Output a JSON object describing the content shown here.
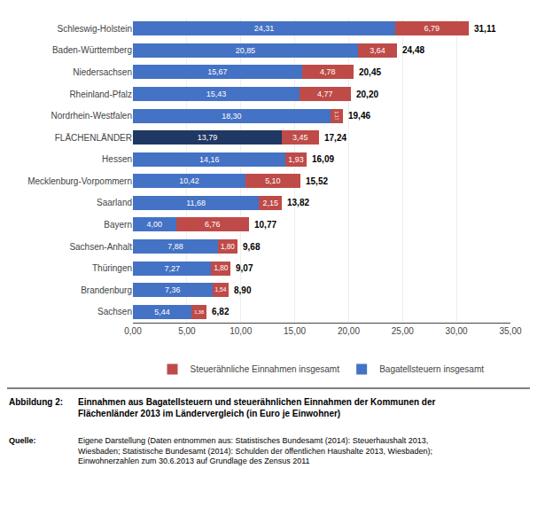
{
  "chart_data": {
    "type": "bar",
    "orientation": "horizontal",
    "stacked": true,
    "data_labels": true,
    "grid": true,
    "legend": "bottom",
    "categories": [
      "Schleswig-Holstein",
      "Baden-Württemberg",
      "Niedersachsen",
      "Rheinland-Pfalz",
      "Nordrhein-Westfalen",
      "FLÄCHENLÄNDER",
      "Hessen",
      "Mecklenburg-Vorpommern",
      "Saarland",
      "Bayern",
      "Sachsen-Anhalt",
      "Thüringen",
      "Brandenburg",
      "Sachsen"
    ],
    "series": [
      {
        "name": "Bagatellsteuern insgesamt",
        "color": "#4472C4",
        "colors": [
          "#4472C4",
          "#4472C4",
          "#4472C4",
          "#4472C4",
          "#4472C4",
          "#1F3864",
          "#4472C4",
          "#4472C4",
          "#4472C4",
          "#4472C4",
          "#4472C4",
          "#4472C4",
          "#4472C4",
          "#4472C4"
        ],
        "values": [
          24.31,
          20.85,
          15.67,
          15.43,
          18.3,
          13.79,
          14.16,
          10.42,
          11.68,
          4.0,
          7.88,
          7.27,
          7.36,
          5.44
        ],
        "value_labels": [
          "24,31",
          "20,85",
          "15,67",
          "15,43",
          "18,30",
          "13,79",
          "14,16",
          "10,42",
          "11,68",
          "4,00",
          "7,88",
          "7,27",
          "7,36",
          "5,44"
        ]
      },
      {
        "name": "Steuerähnliche Einnahmen insgesamt",
        "color": "#BE4B48",
        "values": [
          6.79,
          3.64,
          4.78,
          4.77,
          1.17,
          3.45,
          1.93,
          5.1,
          2.15,
          6.76,
          1.8,
          1.8,
          1.54,
          1.38
        ],
        "value_labels": [
          "6,79",
          "3,64",
          "4,78",
          "4,77",
          "1,17",
          "3,45",
          "1,93",
          "5,10",
          "2,15",
          "6,76",
          "1,80",
          "1,80",
          "1,54",
          "1,38"
        ]
      }
    ],
    "totals": [
      31.11,
      24.48,
      20.45,
      20.2,
      19.46,
      17.24,
      16.09,
      15.52,
      13.82,
      10.77,
      9.68,
      9.07,
      8.9,
      6.82
    ],
    "total_labels": [
      "31,11",
      "24,48",
      "20,45",
      "20,20",
      "19,46",
      "17,24",
      "16,09",
      "15,52",
      "13,82",
      "10,77",
      "9,68",
      "9,07",
      "8,90",
      "6,82"
    ],
    "xlim": [
      0,
      35
    ],
    "xticks": [
      {
        "value": 0,
        "label": "0,00"
      },
      {
        "value": 5,
        "label": "5,00"
      },
      {
        "value": 10,
        "label": "10,00"
      },
      {
        "value": 15,
        "label": "15,00"
      },
      {
        "value": 20,
        "label": "20,00"
      },
      {
        "value": 25,
        "label": "25,00"
      },
      {
        "value": 30,
        "label": "30,00"
      },
      {
        "value": 35,
        "label": "35,00"
      }
    ],
    "annotations": [
      "Abbildung 2:",
      "Einnahmen aus Bagatellsteuern und steuerähnlichen Einnahmen der Kommunen der\nFlächenländer 2013 im Ländervergleich (in Euro je Einwohner)",
      "Quelle:",
      "Eigene Darstellung (Daten entnommen aus: Statistisches Bundesamt (2014): Steuerhaushalt 2013,\nWiesbaden; Statistische Bundesamt (2014): Schulden der öffentlichen Haushalte 2013, Wiesbaden);\nEinwohnerzahlen zum 30.6.2013 auf Grundlage des Zensus 2011"
    ]
  }
}
